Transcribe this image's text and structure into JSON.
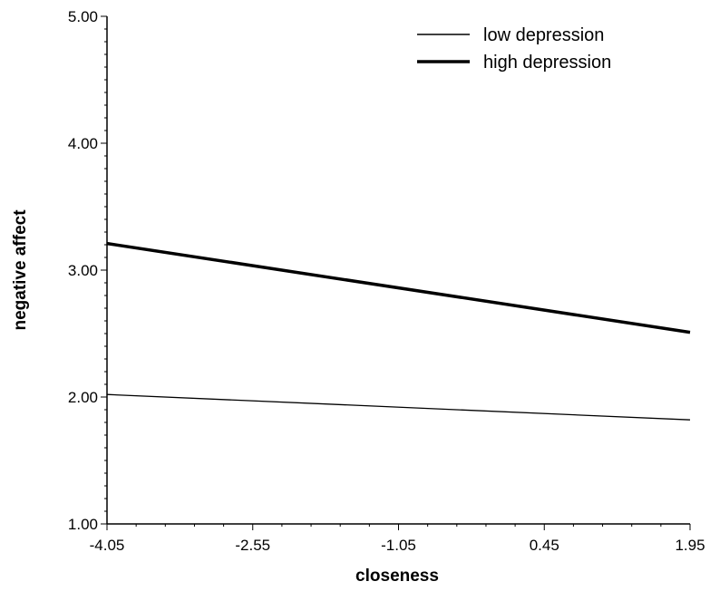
{
  "chart_data": {
    "type": "line",
    "xlabel": "closeness",
    "ylabel": "negative affect",
    "x": [
      -4.05,
      1.95
    ],
    "x_ticks": [
      "-4.05",
      "-2.55",
      "-1.05",
      "0.45",
      "1.95"
    ],
    "x_tick_values": [
      -4.05,
      -2.55,
      -1.05,
      0.45,
      1.95
    ],
    "y_ticks": [
      "1.00",
      "2.00",
      "3.00",
      "4.00",
      "5.00"
    ],
    "y_tick_values": [
      1,
      2,
      3,
      4,
      5
    ],
    "xlim": [
      -4.05,
      1.95
    ],
    "ylim": [
      1,
      5
    ],
    "grid": false,
    "legend_position": "top-right",
    "series": [
      {
        "name": "low depression",
        "values": [
          2.02,
          1.82
        ],
        "style": "thin",
        "color": "#000000"
      },
      {
        "name": "high depression",
        "values": [
          3.21,
          2.51
        ],
        "style": "thick",
        "color": "#000000"
      }
    ]
  }
}
